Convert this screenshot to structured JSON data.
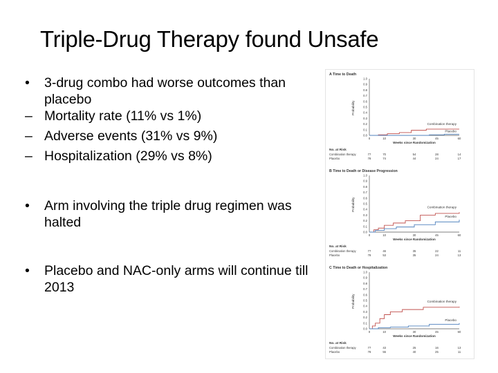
{
  "slide": {
    "title": "Triple-Drug Therapy found Unsafe",
    "bullets": [
      {
        "marker": "•",
        "text": "3-drug combo had worse outcomes than placebo"
      },
      {
        "marker": "–",
        "text": "Mortality rate (11% vs 1%)"
      },
      {
        "marker": "–",
        "text": "Adverse events (31% vs 9%)"
      },
      {
        "marker": "–",
        "text": "Hospitalization (29% vs 8%)"
      },
      {
        "marker": "•",
        "text": "Arm involving the triple drug regimen was halted"
      },
      {
        "marker": "•",
        "text": "Placebo and NAC-only arms will continue till 2013"
      }
    ]
  },
  "figure": {
    "panels": [
      {
        "title": "A  Time to Death",
        "ylabel": "Probability",
        "xlabel": "Weeks since Randomization",
        "label_combo": "Combination therapy",
        "label_placebo": "Placebo",
        "risk_header": "No. at Risk",
        "risk_rows": [
          "Combination therapy",
          "Placebo"
        ],
        "yticks": [
          "1.0",
          "0.9",
          "0.8",
          "0.7",
          "0.6",
          "0.5",
          "0.4",
          "0.3",
          "0.2",
          "0.1",
          "0.0"
        ],
        "xticks": [
          "0",
          "10",
          "30",
          "45",
          "60"
        ],
        "risk_combo": [
          "77",
          "70",
          "54",
          "28",
          "14"
        ],
        "risk_placebo": [
          "78",
          "74",
          "44",
          "24",
          "17"
        ]
      },
      {
        "title": "B  Time to Death or Disease Progression",
        "ylabel": "Probability",
        "xlabel": "Weeks since Randomization",
        "label_combo": "Combination therapy",
        "label_placebo": "Placebo",
        "risk_header": "No. at Risk",
        "risk_rows": [
          "Combination therapy",
          "Placebo"
        ],
        "yticks": [
          "1.0",
          "0.9",
          "0.8",
          "0.7",
          "0.6",
          "0.5",
          "0.4",
          "0.3",
          "0.2",
          "0.1",
          "0.0"
        ],
        "xticks": [
          "0",
          "10",
          "30",
          "45",
          "60"
        ],
        "risk_combo": [
          "77",
          "46",
          "35",
          "22",
          "11"
        ],
        "risk_placebo": [
          "78",
          "53",
          "35",
          "24",
          "13"
        ]
      },
      {
        "title": "C  Time to Death or Hospitalization",
        "ylabel": "Probability",
        "xlabel": "Weeks since Randomization",
        "label_combo": "Combination therapy",
        "label_placebo": "Placebo",
        "risk_header": "No. at Risk",
        "risk_rows": [
          "Combination therapy",
          "Placebo"
        ],
        "yticks": [
          "1.0",
          "0.9",
          "0.8",
          "0.7",
          "0.6",
          "0.5",
          "0.4",
          "0.3",
          "0.2",
          "0.1",
          "0.0"
        ],
        "xticks": [
          "0",
          "10",
          "30",
          "45",
          "60"
        ],
        "risk_combo": [
          "77",
          "43",
          "25",
          "16",
          "13"
        ],
        "risk_placebo": [
          "78",
          "55",
          "40",
          "25",
          "11"
        ]
      }
    ],
    "colors": {
      "combo": "#c0504d",
      "placebo": "#4f81bd",
      "axis": "#555555"
    }
  }
}
